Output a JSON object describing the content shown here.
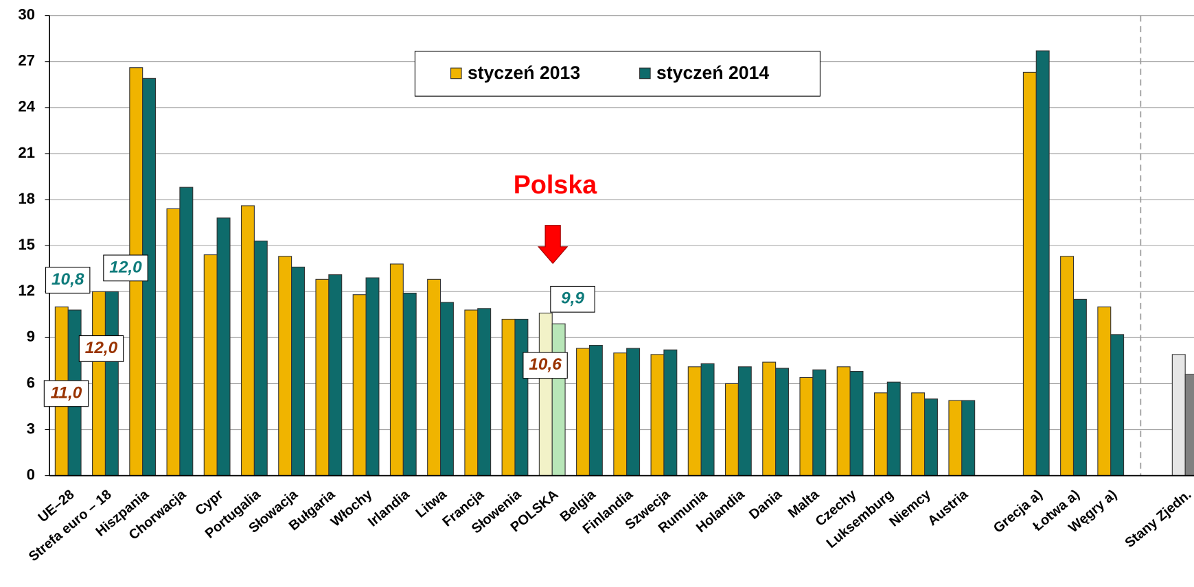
{
  "chart_data": {
    "type": "bar",
    "categories": [
      "UE–28",
      "Strefa euro – 18",
      "Hiszpania",
      "Chorwacja",
      "Cypr",
      "Portugalia",
      "Słowacja",
      "Bułgaria",
      "Włochy",
      "Irlandia",
      "Litwa",
      "Francja",
      "Słowenia",
      "POLSKA",
      "Belgia",
      "Finlandia",
      "Szwecja",
      "Rumunia",
      "Holandia",
      "Dania",
      "Malta",
      "Czechy",
      "Luksemburg",
      "Niemcy",
      "Austria",
      null,
      "Grecja a)",
      "Łotwa a)",
      "Węgry a)",
      null,
      "Stany Zjedn."
    ],
    "series": [
      {
        "name": "styczeń 2013",
        "color": "#f0b400",
        "values": [
          11.0,
          12.0,
          26.6,
          17.4,
          14.4,
          17.6,
          14.3,
          12.8,
          11.8,
          13.8,
          12.8,
          10.8,
          10.2,
          10.6,
          8.3,
          8.0,
          7.9,
          7.1,
          6.0,
          7.4,
          6.4,
          7.1,
          5.4,
          5.4,
          4.9,
          null,
          26.3,
          14.3,
          11.0,
          null,
          7.9
        ],
        "value_labels": [
          "11,0",
          "12,0",
          null,
          null,
          null,
          null,
          null,
          null,
          null,
          null,
          null,
          null,
          null,
          "10,6",
          null,
          null,
          null,
          null,
          null,
          null,
          null,
          null,
          null,
          null,
          null,
          null,
          null,
          null,
          null,
          null,
          null
        ],
        "point_colors": [
          null,
          null,
          null,
          null,
          null,
          null,
          null,
          null,
          null,
          null,
          null,
          null,
          null,
          "#f2f2c8",
          null,
          null,
          null,
          null,
          null,
          null,
          null,
          null,
          null,
          null,
          null,
          null,
          null,
          null,
          null,
          null,
          "#e6e6e6"
        ]
      },
      {
        "name": "styczeń 2014",
        "color": "#0e6b6b",
        "values": [
          10.8,
          12.0,
          25.9,
          18.8,
          16.8,
          15.3,
          13.6,
          13.1,
          12.9,
          11.9,
          11.3,
          10.9,
          10.2,
          9.9,
          8.5,
          8.3,
          8.2,
          7.3,
          7.1,
          7.0,
          6.9,
          6.8,
          6.1,
          5.0,
          4.9,
          null,
          27.7,
          11.5,
          9.2,
          null,
          6.6
        ],
        "value_labels": [
          "10,8",
          "12,0",
          null,
          null,
          null,
          null,
          null,
          null,
          null,
          null,
          null,
          null,
          null,
          "9,9",
          null,
          null,
          null,
          null,
          null,
          null,
          null,
          null,
          null,
          null,
          null,
          null,
          null,
          null,
          null,
          null,
          null
        ],
        "point_colors": [
          null,
          null,
          null,
          null,
          null,
          null,
          null,
          null,
          null,
          null,
          null,
          null,
          null,
          "#b8e6b8",
          null,
          null,
          null,
          null,
          null,
          null,
          null,
          null,
          null,
          null,
          null,
          null,
          null,
          null,
          null,
          null,
          "#808080"
        ]
      }
    ],
    "ylim": [
      0,
      30
    ],
    "yticks": [
      0,
      3,
      6,
      9,
      12,
      15,
      18,
      21,
      24,
      27,
      30
    ],
    "grid": true,
    "annotation": "Polska"
  }
}
